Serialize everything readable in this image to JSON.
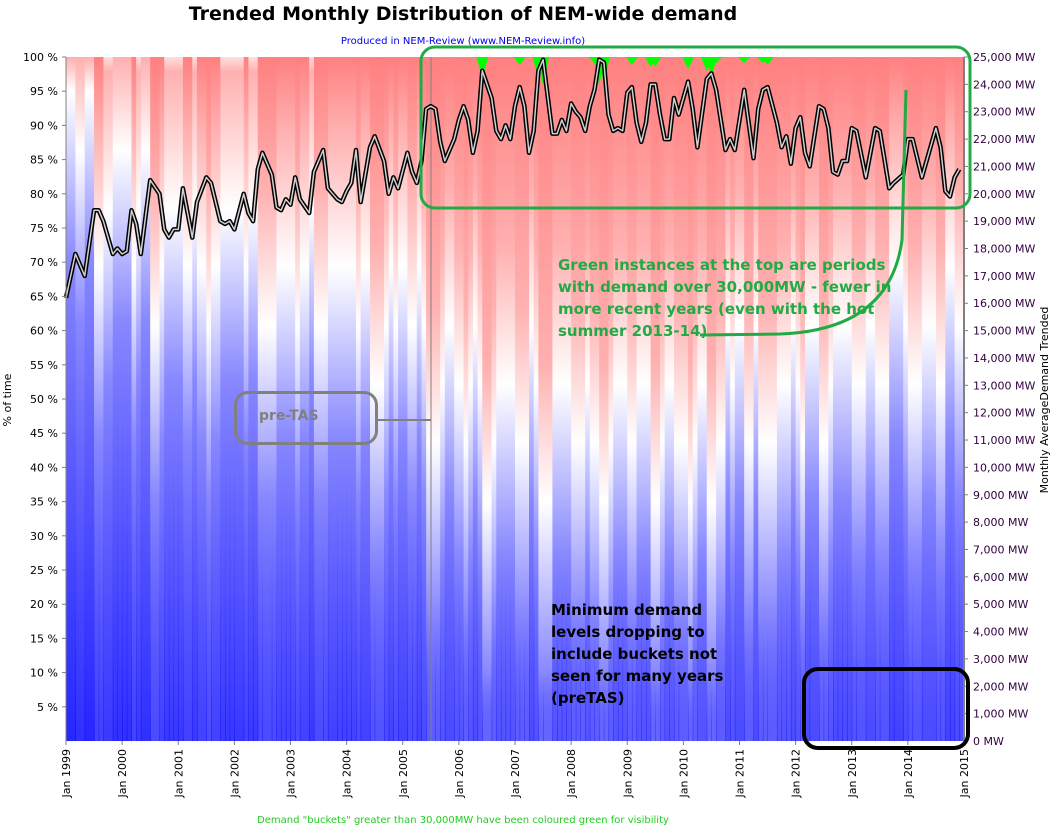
{
  "chart_data": {
    "type": "line",
    "title": "Trended Monthly Distribution of NEM-wide demand",
    "subtitle": "Produced in NEM-Review (www.NEM-Review.info)",
    "footer": "Demand \"buckets\" greater than 30,000MW have been coloured green for visibility",
    "ylabel_left": "% of time",
    "ylabel_right": "Monthly AverageDemand Trended",
    "left_axis": {
      "range": [
        0,
        100
      ],
      "ticks": [
        "5 %",
        "10 %",
        "15 %",
        "20 %",
        "25 %",
        "30 %",
        "35 %",
        "40 %",
        "45 %",
        "50 %",
        "55 %",
        "60 %",
        "65 %",
        "70 %",
        "75 %",
        "80 %",
        "85 %",
        "90 %",
        "95 %",
        "100 %"
      ]
    },
    "right_axis": {
      "range": [
        0,
        25000
      ],
      "unit": "MW",
      "ticks": [
        "0 MW",
        "1,000 MW",
        "2,000 MW",
        "3,000 MW",
        "4,000 MW",
        "5,000 MW",
        "6,000 MW",
        "7,000 MW",
        "8,000 MW",
        "9,000 MW",
        "10,000 MW",
        "11,000 MW",
        "12,000 MW",
        "13,000 MW",
        "14,000 MW",
        "15,000 MW",
        "16,000 MW",
        "17,000 MW",
        "18,000 MW",
        "19,000 MW",
        "20,000 MW",
        "21,000 MW",
        "22,000 MW",
        "23,000 MW",
        "24,000 MW",
        "25,000 MW"
      ]
    },
    "x_axis": {
      "range": [
        "1999-01",
        "2015-01"
      ],
      "ticks": [
        "Jan 1999",
        "Jan 2000",
        "Jan 2001",
        "Jan 2002",
        "Jan 2003",
        "Jan 2004",
        "Jan 2005",
        "Jan 2006",
        "Jan 2007",
        "Jan 2008",
        "Jan 2009",
        "Jan 2010",
        "Jan 2011",
        "Jan 2012",
        "Jan 2013",
        "Jan 2014",
        "Jan 2015"
      ]
    },
    "heatmap_colors": {
      "low": "#0000ff",
      "mid": "#ffffff",
      "high": "#ff0000",
      "over_30000MW": "#00ff00"
    },
    "series": [
      {
        "axis": "right",
        "color": "#000000",
        "points": [
          [
            "1999-01",
            16200
          ],
          [
            "1999-03",
            17800
          ],
          [
            "1999-05",
            17000
          ],
          [
            "1999-07",
            19400
          ],
          [
            "1999-08",
            19400
          ],
          [
            "1999-09",
            19000
          ],
          [
            "1999-11",
            17800
          ],
          [
            "1999-12",
            18000
          ],
          [
            "2000-01",
            17800
          ],
          [
            "2000-02",
            17900
          ],
          [
            "2000-03",
            19400
          ],
          [
            "2000-04",
            18900
          ],
          [
            "2000-05",
            17800
          ],
          [
            "2000-07",
            20500
          ],
          [
            "2000-09",
            20000
          ],
          [
            "2000-10",
            18700
          ],
          [
            "2000-11",
            18400
          ],
          [
            "2000-12",
            18700
          ],
          [
            "2001-01",
            18700
          ],
          [
            "2001-02",
            20200
          ],
          [
            "2001-04",
            18400
          ],
          [
            "2001-05",
            19700
          ],
          [
            "2001-07",
            20600
          ],
          [
            "2001-08",
            20400
          ],
          [
            "2001-10",
            19000
          ],
          [
            "2001-11",
            18900
          ],
          [
            "2001-12",
            19000
          ],
          [
            "2002-01",
            18700
          ],
          [
            "2002-03",
            20000
          ],
          [
            "2002-04",
            19300
          ],
          [
            "2002-05",
            19000
          ],
          [
            "2002-06",
            20900
          ],
          [
            "2002-07",
            21500
          ],
          [
            "2002-09",
            20700
          ],
          [
            "2002-10",
            19500
          ],
          [
            "2002-11",
            19400
          ],
          [
            "2002-12",
            19800
          ],
          [
            "2003-01",
            19600
          ],
          [
            "2003-02",
            20600
          ],
          [
            "2003-03",
            19800
          ],
          [
            "2003-05",
            19300
          ],
          [
            "2003-06",
            20800
          ],
          [
            "2003-08",
            21600
          ],
          [
            "2003-09",
            20200
          ],
          [
            "2003-11",
            19800
          ],
          [
            "2003-12",
            19700
          ],
          [
            "2004-01",
            20100
          ],
          [
            "2004-02",
            20400
          ],
          [
            "2004-03",
            21600
          ],
          [
            "2004-04",
            19700
          ],
          [
            "2004-06",
            21700
          ],
          [
            "2004-07",
            22100
          ],
          [
            "2004-09",
            21200
          ],
          [
            "2004-10",
            20000
          ],
          [
            "2004-11",
            20600
          ],
          [
            "2004-12",
            20200
          ],
          [
            "2005-02",
            21500
          ],
          [
            "2005-03",
            20800
          ],
          [
            "2005-04",
            20400
          ],
          [
            "2005-05",
            21200
          ],
          [
            "2005-06",
            23100
          ],
          [
            "2005-07",
            23200
          ],
          [
            "2005-08",
            23100
          ],
          [
            "2005-09",
            21900
          ],
          [
            "2005-10",
            21200
          ],
          [
            "2005-12",
            22000
          ],
          [
            "2006-01",
            22700
          ],
          [
            "2006-02",
            23200
          ],
          [
            "2006-03",
            22700
          ],
          [
            "2006-04",
            21500
          ],
          [
            "2006-05",
            22300
          ],
          [
            "2006-06",
            24500
          ],
          [
            "2006-08",
            23500
          ],
          [
            "2006-09",
            22300
          ],
          [
            "2006-10",
            22000
          ],
          [
            "2006-11",
            22500
          ],
          [
            "2006-12",
            22000
          ],
          [
            "2007-01",
            23200
          ],
          [
            "2007-02",
            23900
          ],
          [
            "2007-03",
            23200
          ],
          [
            "2007-04",
            21500
          ],
          [
            "2007-05",
            22300
          ],
          [
            "2007-06",
            24500
          ],
          [
            "2007-07",
            24900
          ],
          [
            "2007-09",
            22200
          ],
          [
            "2007-10",
            22200
          ],
          [
            "2007-11",
            22700
          ],
          [
            "2007-12",
            22300
          ],
          [
            "2008-01",
            23300
          ],
          [
            "2008-02",
            23000
          ],
          [
            "2008-03",
            22800
          ],
          [
            "2008-04",
            22300
          ],
          [
            "2008-05",
            23200
          ],
          [
            "2008-06",
            23800
          ],
          [
            "2008-07",
            24900
          ],
          [
            "2008-08",
            24800
          ],
          [
            "2008-09",
            22900
          ],
          [
            "2008-10",
            22300
          ],
          [
            "2008-11",
            22400
          ],
          [
            "2008-12",
            22300
          ],
          [
            "2009-01",
            23700
          ],
          [
            "2009-02",
            23900
          ],
          [
            "2009-03",
            22600
          ],
          [
            "2009-04",
            21900
          ],
          [
            "2009-05",
            22600
          ],
          [
            "2009-06",
            24000
          ],
          [
            "2009-07",
            24000
          ],
          [
            "2009-08",
            22900
          ],
          [
            "2009-09",
            22000
          ],
          [
            "2009-10",
            22000
          ],
          [
            "2009-11",
            23500
          ],
          [
            "2009-12",
            22900
          ],
          [
            "2010-02",
            24100
          ],
          [
            "2010-03",
            23100
          ],
          [
            "2010-04",
            21700
          ],
          [
            "2010-06",
            24200
          ],
          [
            "2010-07",
            24400
          ],
          [
            "2010-08",
            23800
          ],
          [
            "2010-10",
            21600
          ],
          [
            "2010-11",
            22000
          ],
          [
            "2010-12",
            21600
          ],
          [
            "2011-02",
            23800
          ],
          [
            "2011-04",
            21300
          ],
          [
            "2011-05",
            23100
          ],
          [
            "2011-06",
            23800
          ],
          [
            "2011-07",
            23900
          ],
          [
            "2011-09",
            22600
          ],
          [
            "2011-10",
            21700
          ],
          [
            "2011-11",
            22100
          ],
          [
            "2011-12",
            21100
          ],
          [
            "2012-01",
            22400
          ],
          [
            "2012-02",
            22800
          ],
          [
            "2012-03",
            21500
          ],
          [
            "2012-04",
            21000
          ],
          [
            "2012-06",
            23200
          ],
          [
            "2012-07",
            23100
          ],
          [
            "2012-08",
            22400
          ],
          [
            "2012-09",
            20800
          ],
          [
            "2012-10",
            20700
          ],
          [
            "2012-11",
            21200
          ],
          [
            "2012-12",
            21200
          ],
          [
            "2013-01",
            22400
          ],
          [
            "2013-02",
            22300
          ],
          [
            "2013-04",
            20600
          ],
          [
            "2013-06",
            22400
          ],
          [
            "2013-07",
            22300
          ],
          [
            "2013-09",
            20200
          ],
          [
            "2013-10",
            20400
          ],
          [
            "2013-12",
            20700
          ],
          [
            "2014-01",
            22000
          ],
          [
            "2014-02",
            22000
          ],
          [
            "2014-04",
            20600
          ],
          [
            "2014-07",
            22400
          ],
          [
            "2014-08",
            21700
          ],
          [
            "2014-09",
            20100
          ],
          [
            "2014-10",
            19900
          ],
          [
            "2014-11",
            20600
          ],
          [
            "2014-12",
            20900
          ]
        ]
      }
    ],
    "annotations": {
      "green_note": "Green instances at the top are periods with demand over 30,000MW - fewer in more recent years (even with the hot summer 2013-14)",
      "black_note": "Minimum demand levels dropping to include buckets not seen for many years (preTAS)",
      "pretas_label": "pre-TAS",
      "green_color": "#22aa44"
    }
  }
}
